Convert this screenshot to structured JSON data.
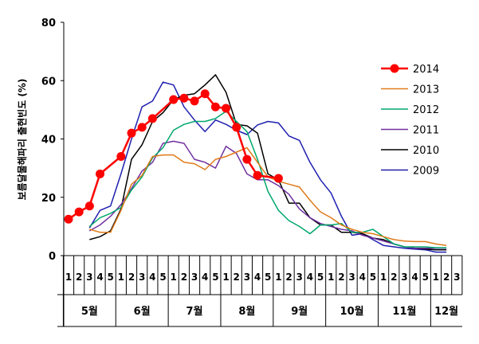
{
  "chart_data": {
    "type": "line",
    "ylabel": "보름달물해파리 출현빈도 (%)",
    "ylim": [
      0,
      80
    ],
    "yticks": [
      0,
      20,
      40,
      60,
      80
    ],
    "grid": false,
    "legend_position": "top-right",
    "x_ticks": [
      "1",
      "2",
      "3",
      "4",
      "5",
      "1",
      "2",
      "3",
      "4",
      "5",
      "1",
      "2",
      "3",
      "4",
      "5",
      "1",
      "2",
      "3",
      "4",
      "5",
      "1",
      "2",
      "3",
      "4",
      "5",
      "1",
      "2",
      "3",
      "4",
      "5",
      "1",
      "2",
      "3",
      "4",
      "5",
      "1",
      "2",
      "3"
    ],
    "months": [
      {
        "label": "5월",
        "count": 5
      },
      {
        "label": "6월",
        "count": 5
      },
      {
        "label": "7월",
        "count": 5
      },
      {
        "label": "8월",
        "count": 5
      },
      {
        "label": "9월",
        "count": 5
      },
      {
        "label": "10월",
        "count": 5
      },
      {
        "label": "11월",
        "count": 5
      },
      {
        "label": "12월",
        "count": 3
      }
    ],
    "series": [
      {
        "name": "2009",
        "color": "#1f1fb0",
        "marker": false,
        "start": 2,
        "values": [
          9.5,
          15.5,
          17,
          28,
          40,
          51,
          53,
          59.5,
          58.5,
          51,
          46.5,
          42.5,
          46.5,
          45,
          43,
          41.5,
          44.8,
          46,
          45.5,
          41,
          39.5,
          32,
          26,
          21.5,
          13.5,
          7,
          7.5,
          5.5,
          3.5,
          3,
          2.5,
          2.2,
          2,
          1.2,
          1.2
        ]
      },
      {
        "name": "2010",
        "color": "#000000",
        "marker": false,
        "start": 2,
        "values": [
          5.5,
          6.5,
          8.5,
          16,
          33,
          38,
          46,
          49,
          53.5,
          55,
          55.5,
          58.5,
          62,
          56,
          45,
          44.5,
          42,
          28,
          26,
          18,
          18,
          13,
          10.5,
          10.5,
          8,
          8,
          7.5,
          6,
          5.5,
          4,
          3,
          2.5,
          2.2,
          2,
          2
        ]
      },
      {
        "name": "2011",
        "color": "#7030a0",
        "marker": false,
        "start": 2,
        "values": [
          8.5,
          10.5,
          13.5,
          17.5,
          23,
          29,
          32,
          38.5,
          39.2,
          38.5,
          33,
          32,
          30,
          37.5,
          35,
          28,
          26,
          26,
          24,
          21,
          16,
          13,
          11,
          10,
          9,
          8.5,
          7,
          6,
          5,
          4,
          3,
          2.5,
          2.5,
          2.5,
          2.5
        ]
      },
      {
        "name": "2012",
        "color": "#00a86b",
        "marker": false,
        "start": 2,
        "values": [
          10,
          13,
          14.5,
          16.5,
          22.5,
          27,
          33.5,
          37,
          43,
          45,
          46,
          46,
          47,
          49.5,
          46,
          42.5,
          33,
          22,
          15.5,
          12,
          10,
          7.5,
          10.5,
          10.5,
          11,
          8,
          8,
          9,
          6.5,
          4,
          3,
          3,
          3,
          2.7,
          2.7
        ]
      },
      {
        "name": "2013",
        "color": "#e07b1a",
        "marker": false,
        "start": 2,
        "values": [
          9,
          8,
          8,
          15.5,
          24.5,
          27.5,
          34,
          34.5,
          34.5,
          32,
          31.5,
          29.5,
          33,
          34,
          35.5,
          37,
          32,
          27,
          25.5,
          24.5,
          23.5,
          19,
          15,
          13,
          10.5,
          9,
          8,
          7.5,
          6.5,
          5.5,
          5,
          4.8,
          4.8,
          4,
          3.5
        ]
      },
      {
        "name": "2014",
        "color": "#ff0000",
        "marker": true,
        "start": 0,
        "values": [
          12.5,
          15,
          17,
          28,
          null,
          34,
          42,
          44,
          47,
          null,
          53.5,
          54,
          53,
          55.5,
          51,
          50.5,
          44,
          33,
          27.5,
          null,
          26.5
        ]
      }
    ]
  }
}
